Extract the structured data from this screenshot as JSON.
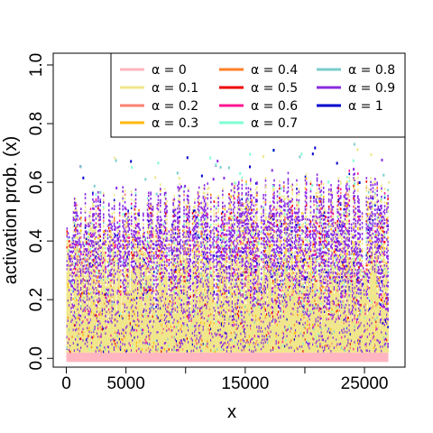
{
  "chart_data": {
    "type": "line",
    "title": "",
    "xlabel": "x",
    "ylabel": "activation prob. (x)",
    "xlim": [
      -1100,
      28400
    ],
    "ylim": [
      -0.03,
      1.04
    ],
    "x_ticks": [
      0,
      5000,
      10000,
      15000,
      20000,
      25000
    ],
    "x_tick_labels": [
      "0",
      "5000",
      "",
      "15000",
      "",
      "25000"
    ],
    "y_ticks": [
      0.0,
      0.2,
      0.4,
      0.6,
      0.8,
      1.0
    ],
    "y_tick_labels": [
      "0.0",
      "0.2",
      "0.4",
      "0.6",
      "0.8",
      "1.0"
    ],
    "grid": false,
    "legend_position": "top-right",
    "legend_columns": 3,
    "x_range_of_data": [
      0,
      27000
    ],
    "series": [
      {
        "name": "α = 0",
        "color": "#FFB6C1",
        "approx_range": [
          0.0,
          0.02
        ]
      },
      {
        "name": "α = 0.1",
        "color": "#F0E68C",
        "approx_range": [
          0.0,
          0.6
        ]
      },
      {
        "name": "α = 0.2",
        "color": "#FA8072",
        "approx_range": [
          0.0,
          0.6
        ]
      },
      {
        "name": "α = 0.3",
        "color": "#FFB90F",
        "approx_range": [
          0.0,
          0.6
        ]
      },
      {
        "name": "α = 0.4",
        "color": "#FF7F24",
        "approx_range": [
          0.0,
          0.6
        ]
      },
      {
        "name": "α = 0.5",
        "color": "#EE0000",
        "approx_range": [
          0.0,
          0.6
        ]
      },
      {
        "name": "α = 0.6",
        "color": "#FF1493",
        "approx_range": [
          0.0,
          0.6
        ]
      },
      {
        "name": "α = 0.7",
        "color": "#7FFFD4",
        "approx_range": [
          0.0,
          0.65
        ]
      },
      {
        "name": "α = 0.8",
        "color": "#79CDCD",
        "approx_range": [
          0.0,
          0.65
        ]
      },
      {
        "name": "α = 0.9",
        "color": "#8A2BE2",
        "approx_range": [
          0.0,
          0.7
        ]
      },
      {
        "name": "α = 1",
        "color": "#0000CD",
        "approx_range": [
          0.0,
          0.7
        ]
      }
    ]
  }
}
